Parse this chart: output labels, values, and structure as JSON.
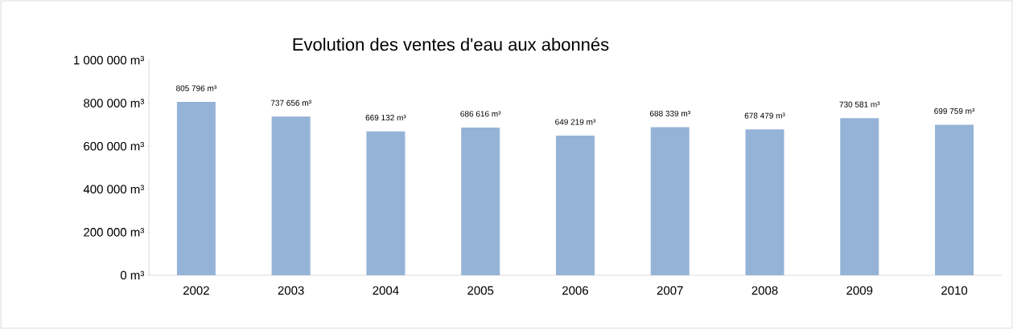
{
  "chart_data": {
    "type": "bar",
    "title": "Evolution des ventes d'eau  aux abonnés",
    "categories": [
      "2002",
      "2003",
      "2004",
      "2005",
      "2006",
      "2007",
      "2008",
      "2009",
      "2010"
    ],
    "values": [
      805796,
      737656,
      669132,
      686616,
      649219,
      688339,
      678479,
      730581,
      699759
    ],
    "value_labels": [
      "805 796 m³",
      "737 656 m³",
      "669 132 m³",
      "686 616 m³",
      "649 219 m³",
      "688 339 m³",
      "678 479 m³",
      "730 581 m³",
      "699 759 m³"
    ],
    "color": "#95b3d7",
    "ylim": [
      0,
      1000000
    ],
    "yticks": [
      {
        "value": 0,
        "label": "0 m³"
      },
      {
        "value": 200000,
        "label": "200 000 m³"
      },
      {
        "value": 400000,
        "label": "400 000 m³"
      },
      {
        "value": 600000,
        "label": "600 000 m³"
      },
      {
        "value": 800000,
        "label": "800 000 m³"
      },
      {
        "value": 1000000,
        "label": "1 000 000 m³"
      }
    ],
    "grid": false
  }
}
